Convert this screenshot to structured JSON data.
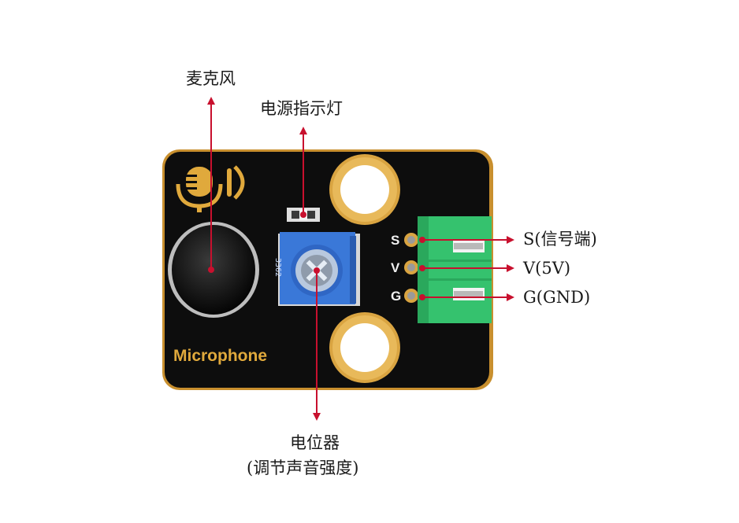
{
  "labels": {
    "microphone": "麦克风",
    "power_led": "电源指示灯",
    "potentiometer_line1": "电位器",
    "potentiometer_line2": "(调节声音强度)",
    "signal_pin": "S(信号端)",
    "vcc_pin": "V(5V)",
    "gnd_pin": "G(GND)"
  },
  "board": {
    "name": "Microphone",
    "pin_s": "S",
    "pin_v": "V",
    "pin_g": "G",
    "pot_code": "3362"
  },
  "colors": {
    "board": "#0d0d0d",
    "gold": "#d9a441",
    "arrow": "#c8102e",
    "connector": "#35c26e",
    "pot": "#3a78d8"
  },
  "icons": [
    "microphone-icon"
  ]
}
